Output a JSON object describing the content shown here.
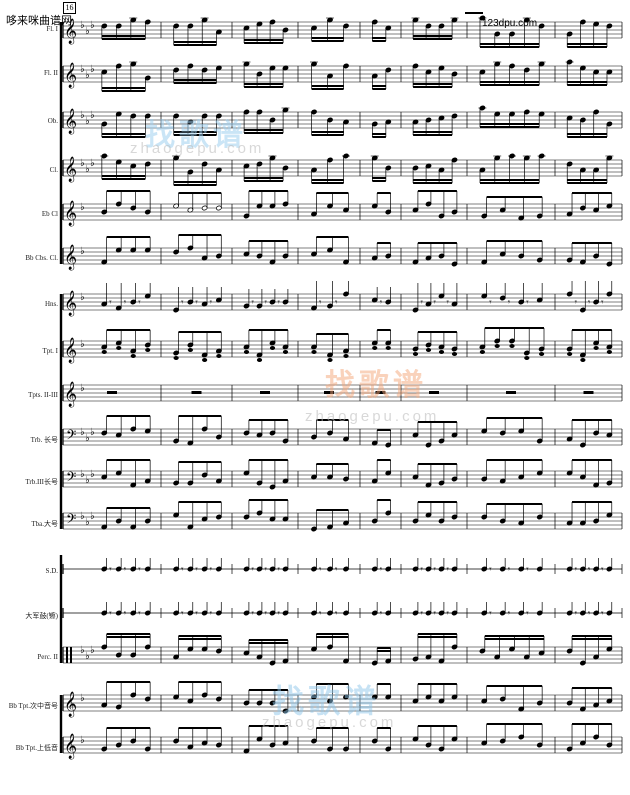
{
  "header": {
    "left_site": "哆来咪曲谱网",
    "right_site": "123dpu.com"
  },
  "measure_number": "16",
  "instruments": [
    {
      "label": "Fl. I"
    },
    {
      "label": "Fl. II"
    },
    {
      "label": "Ob."
    },
    {
      "label": "Cl."
    },
    {
      "label": "Eb Cl"
    },
    {
      "label": "Bb Cbs. Cl."
    },
    {
      "label": "Hns."
    },
    {
      "label": "Tpt. I"
    },
    {
      "label": "Tpts. II-III"
    },
    {
      "label": "Trb. 长号"
    },
    {
      "label": "Trb.III长号"
    },
    {
      "label": "Tba.大号"
    },
    {
      "label": "S.D."
    },
    {
      "label": "大军鼓(镲)"
    },
    {
      "label": "Perc. II"
    },
    {
      "label": "Bb Tpt.次中音号"
    },
    {
      "label": "Bb Tpt.上低音"
    }
  ],
  "watermark": {
    "brand": "找歌谱",
    "domain": "zhaogepu.com"
  },
  "colors": {
    "ink": "#000000",
    "watermark_orange": "#f4a67a",
    "watermark_blue": "#8fc6ea"
  }
}
